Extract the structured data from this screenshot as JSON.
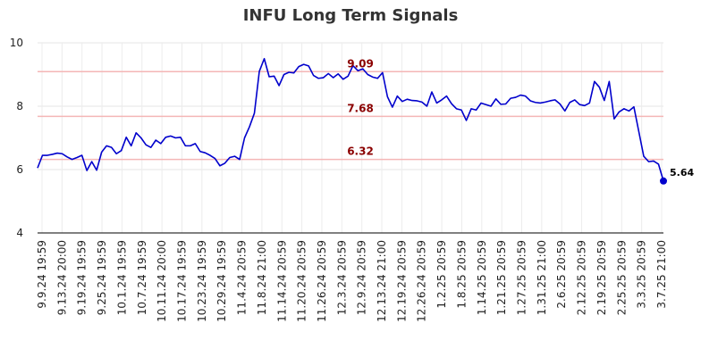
{
  "chart_data": {
    "type": "line",
    "title": "INFU Long Term Signals",
    "xlabel": "",
    "ylabel": "",
    "ylim": [
      4,
      10
    ],
    "y_ticks": [
      4,
      6,
      8,
      10
    ],
    "grid": true,
    "legend": "none",
    "x_tick_labels": [
      "9.9.24 19:59",
      "9.13.24 20:00",
      "9.19.24 19:59",
      "9.25.24 19:59",
      "10.1.24 19:59",
      "10.7.24 19:59",
      "10.11.24 20:00",
      "10.17.24 19:59",
      "10.23.24 19:59",
      "10.29.24 19:59",
      "11.4.24 20:59",
      "11.8.24 21:00",
      "11.14.24 20:59",
      "11.20.24 20:59",
      "11.26.24 20:59",
      "12.3.24 20:59",
      "12.9.24 20:59",
      "12.13.24 21:00",
      "12.19.24 20:59",
      "12.26.24 20:59",
      "1.2.25 20:59",
      "1.8.25 20:59",
      "1.14.25 20:59",
      "1.21.25 20:59",
      "1.27.25 20:59",
      "1.31.25 21:00",
      "2.6.25 20:59",
      "2.12.25 20:59",
      "2.19.25 20:59",
      "2.25.25 20:59",
      "3.3.25 20:59",
      "3.7.25 21:00"
    ],
    "reference_lines": [
      {
        "label": "9.09",
        "value": 9.09
      },
      {
        "label": "7.68",
        "value": 7.68
      },
      {
        "label": "6.32",
        "value": 6.32
      }
    ],
    "last_value_label": "5.64",
    "series": [
      {
        "values": [
          6.05,
          6.45,
          6.45,
          6.48,
          6.52,
          6.5,
          6.4,
          6.32,
          6.38,
          6.45,
          5.97,
          6.25,
          5.98,
          6.55,
          6.75,
          6.7,
          6.5,
          6.6,
          7.02,
          6.75,
          7.16,
          7.0,
          6.78,
          6.7,
          6.93,
          6.82,
          7.02,
          7.06,
          7.0,
          7.02,
          6.75,
          6.75,
          6.82,
          6.57,
          6.53,
          6.45,
          6.35,
          6.12,
          6.2,
          6.38,
          6.42,
          6.32,
          7.0,
          7.35,
          7.78,
          9.1,
          9.5,
          8.93,
          8.95,
          8.65,
          9.0,
          9.07,
          9.05,
          9.25,
          9.32,
          9.27,
          8.97,
          8.88,
          8.9,
          9.03,
          8.9,
          9.02,
          8.85,
          8.95,
          9.28,
          9.12,
          9.18,
          9.0,
          8.92,
          8.88,
          9.06,
          8.3,
          7.97,
          8.32,
          8.15,
          8.22,
          8.18,
          8.17,
          8.13,
          8.0,
          8.45,
          8.1,
          8.2,
          8.32,
          8.08,
          7.92,
          7.88,
          7.55,
          7.92,
          7.88,
          8.1,
          8.05,
          8.0,
          8.23,
          8.06,
          8.07,
          8.25,
          8.28,
          8.35,
          8.32,
          8.17,
          8.12,
          8.1,
          8.13,
          8.17,
          8.2,
          8.07,
          7.85,
          8.12,
          8.2,
          8.05,
          8.02,
          8.1,
          8.78,
          8.6,
          8.18,
          8.78,
          7.6,
          7.82,
          7.92,
          7.85,
          7.98,
          7.2,
          6.42,
          6.25,
          6.27,
          6.17,
          5.64
        ]
      }
    ]
  }
}
